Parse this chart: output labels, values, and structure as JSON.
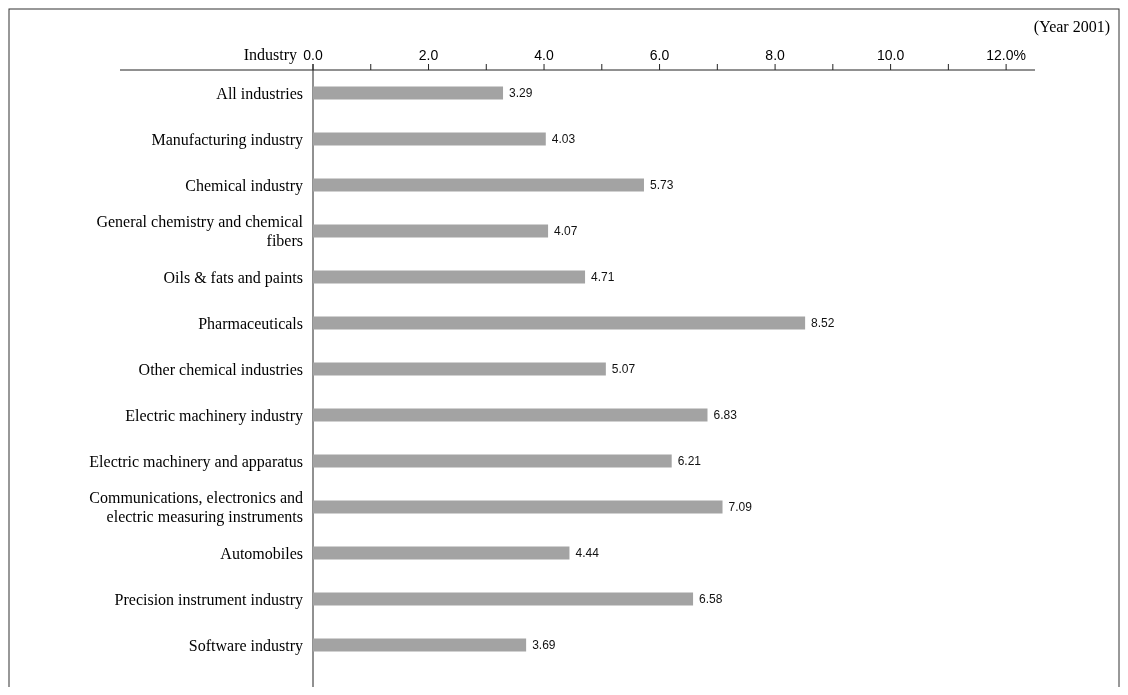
{
  "chart_data": {
    "type": "bar",
    "orientation": "horizontal",
    "ylabel": "Industry",
    "annotations": [
      "(Year 2001)"
    ],
    "categories": [
      "All industries",
      "Manufacturing industry",
      "Chemical industry",
      "General chemistry and chemical fibers",
      "Oils & fats and paints",
      "Pharmaceuticals",
      "Other chemical industries",
      "Electric machinery industry",
      "Electric machinery and apparatus",
      "Communications, electronics and electric measuring instruments",
      "Automobiles",
      "Precision instrument industry",
      "Software industry"
    ],
    "values": [
      3.29,
      4.03,
      5.73,
      4.07,
      4.71,
      8.52,
      5.07,
      6.83,
      6.21,
      7.09,
      4.44,
      6.58,
      3.69
    ],
    "color": "#a3a3a3",
    "data_labels": true,
    "xlim": [
      0,
      12.5
    ],
    "xticks": [
      {
        "value": 0,
        "label": "0.0"
      },
      {
        "value": 1,
        "label": null
      },
      {
        "value": 2,
        "label": "2.0"
      },
      {
        "value": 3,
        "label": null
      },
      {
        "value": 4,
        "label": "4.0"
      },
      {
        "value": 5,
        "label": null
      },
      {
        "value": 6,
        "label": "6.0"
      },
      {
        "value": 7,
        "label": null
      },
      {
        "value": 8,
        "label": "8.0"
      },
      {
        "value": 9,
        "label": null
      },
      {
        "value": 10,
        "label": "10.0"
      },
      {
        "value": 11,
        "label": null
      },
      {
        "value": 12,
        "label": "12.0%"
      }
    ]
  }
}
